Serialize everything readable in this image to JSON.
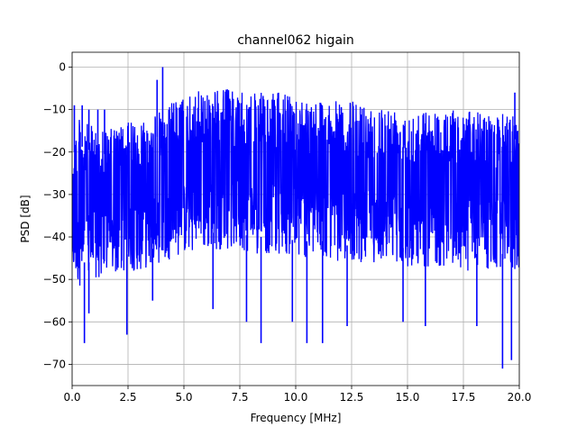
{
  "chart_data": {
    "type": "line",
    "title": "channel062 higain",
    "xlabel": "Frequency [MHz]",
    "ylabel": "PSD [dB]",
    "xlim": [
      0,
      20
    ],
    "ylim": [
      -75,
      3.5
    ],
    "xticks": [
      0,
      2.5,
      5,
      7.5,
      10,
      12.5,
      15,
      17.5,
      20
    ],
    "xtick_labels": [
      "0.0",
      "2.5",
      "5.0",
      "7.5",
      "10.0",
      "12.5",
      "15.0",
      "17.5",
      "20.0"
    ],
    "yticks": [
      0,
      -10,
      -20,
      -30,
      -40,
      -50,
      -60,
      -70
    ],
    "ytick_labels": [
      "0",
      "−10",
      "−20",
      "−30",
      "−40",
      "−50",
      "−60",
      "−70"
    ],
    "grid": true,
    "line_color": "#0000ff",
    "upper_envelope": {
      "x": [
        0,
        0.3,
        0.5,
        1.0,
        1.3,
        1.5,
        2.0,
        2.5,
        3.0,
        3.5,
        4.0,
        4.5,
        5.0,
        5.5,
        6.0,
        6.5,
        7.0,
        7.5,
        8.0,
        8.5,
        9.0,
        9.5,
        10.0,
        10.5,
        11.0,
        11.5,
        12.0,
        12.5,
        13.0,
        13.5,
        14.0,
        14.5,
        15.0,
        15.5,
        16.0,
        16.5,
        17.0,
        17.5,
        18.0,
        18.5,
        19.0,
        19.5,
        20.0
      ],
      "y": [
        -15,
        -12,
        -13,
        -14,
        -13,
        -15,
        -14,
        -13,
        -12,
        -11,
        -10,
        -8,
        -7,
        -6,
        -5,
        -5,
        -5,
        -6,
        -6,
        -6,
        -6,
        -6,
        -7,
        -7,
        -7,
        -8,
        -8,
        -8,
        -8,
        -9,
        -9,
        -9,
        -9,
        -10,
        -10,
        -10,
        -10,
        -10,
        -10,
        -11,
        -11,
        -11,
        -11
      ]
    },
    "lower_envelope": {
      "x": [
        0,
        0.3,
        0.5,
        1.0,
        1.3,
        1.5,
        2.0,
        2.5,
        3.0,
        3.5,
        4.0,
        4.5,
        5.0,
        5.5,
        6.0,
        6.5,
        7.0,
        7.5,
        8.0,
        8.5,
        9.0,
        9.5,
        10.0,
        10.5,
        11.0,
        11.5,
        12.0,
        12.5,
        13.0,
        13.5,
        14.0,
        14.5,
        15.0,
        15.5,
        16.0,
        16.5,
        17.0,
        17.5,
        18.0,
        18.5,
        19.0,
        19.5,
        20.0
      ],
      "y": [
        -48,
        -52,
        -50,
        -50,
        -50,
        -49,
        -49,
        -48,
        -48,
        -47,
        -46,
        -45,
        -44,
        -44,
        -43,
        -43,
        -43,
        -43,
        -44,
        -44,
        -44,
        -44,
        -45,
        -45,
        -45,
        -45,
        -46,
        -46,
        -46,
        -46,
        -46,
        -46,
        -47,
        -47,
        -47,
        -47,
        -47,
        -48,
        -48,
        -48,
        -48,
        -48,
        -48
      ]
    },
    "peaks": [
      {
        "x": 0.1,
        "y": -9
      },
      {
        "x": 0.45,
        "y": -9
      },
      {
        "x": 0.75,
        "y": -10
      },
      {
        "x": 1.15,
        "y": -10
      },
      {
        "x": 1.45,
        "y": -10
      },
      {
        "x": 3.8,
        "y": -3
      },
      {
        "x": 4.05,
        "y": 0
      },
      {
        "x": 19.8,
        "y": -6
      }
    ],
    "dips": [
      {
        "x": 0.55,
        "y": -65
      },
      {
        "x": 0.75,
        "y": -58
      },
      {
        "x": 2.45,
        "y": -63
      },
      {
        "x": 3.6,
        "y": -55
      },
      {
        "x": 6.3,
        "y": -57
      },
      {
        "x": 7.8,
        "y": -60
      },
      {
        "x": 8.45,
        "y": -65
      },
      {
        "x": 9.85,
        "y": -60
      },
      {
        "x": 10.5,
        "y": -65
      },
      {
        "x": 11.2,
        "y": -65
      },
      {
        "x": 12.3,
        "y": -61
      },
      {
        "x": 14.8,
        "y": -60
      },
      {
        "x": 15.8,
        "y": -61
      },
      {
        "x": 18.1,
        "y": -61
      },
      {
        "x": 19.25,
        "y": -71
      },
      {
        "x": 19.65,
        "y": -69
      }
    ]
  }
}
